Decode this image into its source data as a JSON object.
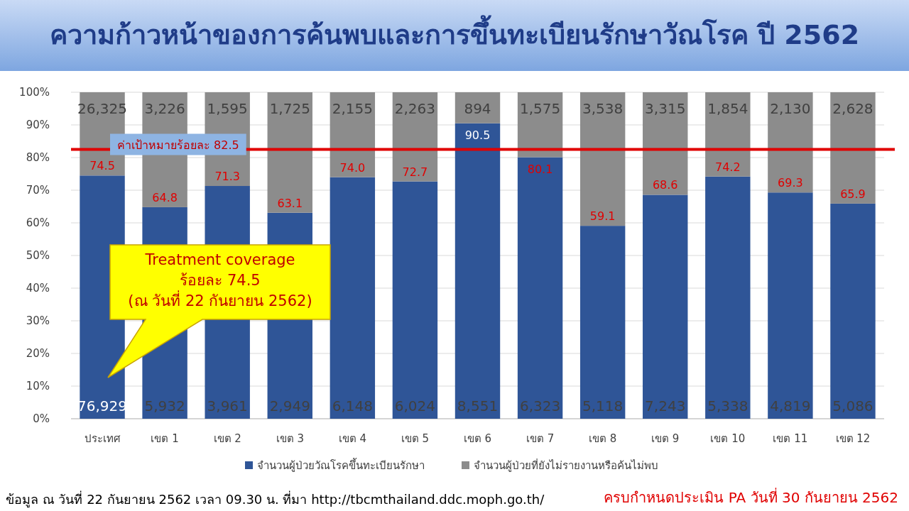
{
  "chart_data": {
    "type": "bar",
    "title": "ความก้าวหน้าของการค้นพบและการขึ้นทะเบียนรักษาวัณโรค ปี 2562",
    "stacked": true,
    "categories": [
      "ประเทศ",
      "เขต 1",
      "เขต 2",
      "เขต 3",
      "เขต 4",
      "เขต 5",
      "เขต 6",
      "เขต 7",
      "เขต 8",
      "เขต 9",
      "เขต 10",
      "เขต 11",
      "เขต 12"
    ],
    "series": [
      {
        "name": "จำนวนผู้ป่วยวัณโรคขึ้นทะเบียนรักษา",
        "color": "#2f5597",
        "values": [
          74.5,
          64.8,
          71.3,
          63.1,
          74.0,
          72.7,
          90.5,
          80.1,
          59.1,
          68.6,
          74.2,
          69.3,
          65.9
        ],
        "value_labels": [
          "74.5",
          "64.8",
          "71.3",
          "63.1",
          "74.0",
          "72.7",
          "90.5",
          "80.1",
          "59.1",
          "68.6",
          "74.2",
          "69.3",
          "65.9"
        ]
      },
      {
        "name": "จำนวนผู้ป่วยที่ยังไม่รายงานหรือค้นไม่พบ",
        "color": "#8c8c8c",
        "values": [
          25.5,
          35.2,
          28.7,
          36.9,
          26.0,
          27.3,
          9.5,
          19.9,
          40.9,
          31.4,
          25.8,
          30.7,
          34.1
        ]
      }
    ],
    "ylim": [
      0,
      100
    ],
    "yticks": [
      {
        "value": 0,
        "label": "0%"
      },
      {
        "value": 10,
        "label": "10%"
      },
      {
        "value": 20,
        "label": "20%"
      },
      {
        "value": 30,
        "label": "30%"
      },
      {
        "value": 40,
        "label": "40%"
      },
      {
        "value": 50,
        "label": "50%"
      },
      {
        "value": 60,
        "label": "60%"
      },
      {
        "value": 70,
        "label": "70%"
      },
      {
        "value": 80,
        "label": "80%"
      },
      {
        "value": 90,
        "label": "90%"
      },
      {
        "value": 100,
        "label": "100%"
      }
    ],
    "grid": "y",
    "legend": "bottom",
    "ref_lines": [
      {
        "axis": "y",
        "value": 82.5,
        "label": "ค่าเป้าหมายร้อยละ 82.5",
        "color": "#e00000"
      }
    ],
    "annotations": [
      {
        "text": "76,929",
        "x": "ประเทศ",
        "y": 0
      },
      {
        "text": "5,932",
        "x": "เขต 1",
        "y": 0
      },
      {
        "text": "3,961",
        "x": "เขต 2",
        "y": 0
      },
      {
        "text": "2,949",
        "x": "เขต 3",
        "y": 0
      },
      {
        "text": "6,148",
        "x": "เขต 4",
        "y": 0
      },
      {
        "text": "6,024",
        "x": "เขต 5",
        "y": 0
      },
      {
        "text": "8,551",
        "x": "เขต 6",
        "y": 0
      },
      {
        "text": "6,323",
        "x": "เขต 7",
        "y": 0
      },
      {
        "text": "5,118",
        "x": "เขต 8",
        "y": 0
      },
      {
        "text": "7,243",
        "x": "เขต 9",
        "y": 0
      },
      {
        "text": "5,338",
        "x": "เขต 10",
        "y": 0
      },
      {
        "text": "4,819",
        "x": "เขต 11",
        "y": 0
      },
      {
        "text": "5,086",
        "x": "เขต 12",
        "y": 0
      },
      {
        "text": "26,325",
        "x": "ประเทศ",
        "y": 100
      },
      {
        "text": "3,226",
        "x": "เขต 1",
        "y": 100
      },
      {
        "text": "1,595",
        "x": "เขต 2",
        "y": 100
      },
      {
        "text": "1,725",
        "x": "เขต 3",
        "y": 100
      },
      {
        "text": "2,155",
        "x": "เขต 4",
        "y": 100
      },
      {
        "text": "2,263",
        "x": "เขต 5",
        "y": 100
      },
      {
        "text": "894",
        "x": "เขต 6",
        "y": 100
      },
      {
        "text": "1,575",
        "x": "เขต 7",
        "y": 100
      },
      {
        "text": "3,538",
        "x": "เขต 8",
        "y": 100
      },
      {
        "text": "3,315",
        "x": "เขต 9",
        "y": 100
      },
      {
        "text": "1,854",
        "x": "เขต 10",
        "y": 100
      },
      {
        "text": "2,130",
        "x": "เขต 11",
        "y": 100
      },
      {
        "text": "2,628",
        "x": "เขต 12",
        "y": 100
      },
      "Treatment coverage\nร้อยละ 74.5\n(ณ วันที่ 22 กันยายน 2562)",
      "ข้อมูล ณ วันที่  22 กันยายน 2562 เวลา 09.30 น.  ที่มา http://tbcmthailand.ddc.moph.go.th/",
      "ครบกำหนดประเมิน PA วันที่ 30 กันยายน 2562"
    ]
  }
}
